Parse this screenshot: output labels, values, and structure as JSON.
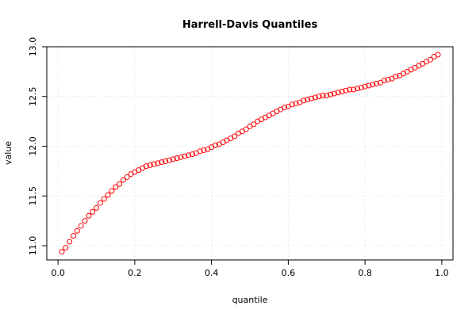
{
  "chart_data": {
    "type": "scatter",
    "title": "Harrell-Davis Quantiles",
    "x_label": "quantile",
    "y_label": "value",
    "series": [
      {
        "color": "#ff0000",
        "x": [
          0.01,
          0.02,
          0.03,
          0.04,
          0.05,
          0.06,
          0.07,
          0.08,
          0.09,
          0.1,
          0.11,
          0.12,
          0.13,
          0.14,
          0.15,
          0.16,
          0.17,
          0.18,
          0.19,
          0.2,
          0.21,
          0.22,
          0.23,
          0.24,
          0.25,
          0.26,
          0.27,
          0.28,
          0.29,
          0.3,
          0.31,
          0.32,
          0.33,
          0.34,
          0.35,
          0.36,
          0.37,
          0.38,
          0.39,
          0.4,
          0.41,
          0.42,
          0.43,
          0.44,
          0.45,
          0.46,
          0.47,
          0.48,
          0.49,
          0.5,
          0.51,
          0.52,
          0.53,
          0.54,
          0.55,
          0.56,
          0.57,
          0.58,
          0.59,
          0.6,
          0.61,
          0.62,
          0.63,
          0.64,
          0.65,
          0.66,
          0.67,
          0.68,
          0.69,
          0.7,
          0.71,
          0.72,
          0.73,
          0.74,
          0.75,
          0.76,
          0.77,
          0.78,
          0.79,
          0.8,
          0.81,
          0.82,
          0.83,
          0.84,
          0.85,
          0.86,
          0.87,
          0.88,
          0.89,
          0.9,
          0.91,
          0.92,
          0.93,
          0.94,
          0.95,
          0.96,
          0.97,
          0.98,
          0.99
        ],
        "values": [
          10.94,
          10.98,
          11.04,
          11.1,
          11.15,
          11.2,
          11.25,
          11.3,
          11.34,
          11.38,
          11.43,
          11.47,
          11.51,
          11.55,
          11.59,
          11.62,
          11.66,
          11.69,
          11.72,
          11.74,
          11.76,
          11.78,
          11.8,
          11.81,
          11.82,
          11.83,
          11.84,
          11.85,
          11.86,
          11.87,
          11.88,
          11.89,
          11.9,
          11.91,
          11.92,
          11.93,
          11.95,
          11.96,
          11.97,
          11.99,
          12.01,
          12.02,
          12.04,
          12.06,
          12.08,
          12.1,
          12.13,
          12.15,
          12.17,
          12.2,
          12.22,
          12.25,
          12.27,
          12.29,
          12.31,
          12.33,
          12.35,
          12.37,
          12.39,
          12.4,
          12.42,
          12.43,
          12.44,
          12.46,
          12.47,
          12.48,
          12.49,
          12.5,
          12.51,
          12.51,
          12.52,
          12.53,
          12.54,
          12.55,
          12.56,
          12.57,
          12.57,
          12.58,
          12.59,
          12.6,
          12.61,
          12.62,
          12.63,
          12.64,
          12.66,
          12.67,
          12.68,
          12.7,
          12.71,
          12.73,
          12.75,
          12.77,
          12.79,
          12.81,
          12.83,
          12.85,
          12.87,
          12.9,
          12.92
        ]
      }
    ],
    "xlim": [
      -0.0292,
      1.0292
    ],
    "ylim": [
      10.857,
      13.0
    ],
    "xticks": [
      {
        "value": 0,
        "label": "0.0"
      },
      0.2,
      0.4,
      0.6,
      0.8,
      {
        "value": 1,
        "label": "1.0"
      }
    ],
    "yticks": [
      {
        "value": 11,
        "label": "11.0"
      },
      11.5,
      {
        "value": 12,
        "label": "12.0"
      },
      12.5,
      {
        "value": 13,
        "label": "13.0"
      }
    ],
    "grid": true
  }
}
